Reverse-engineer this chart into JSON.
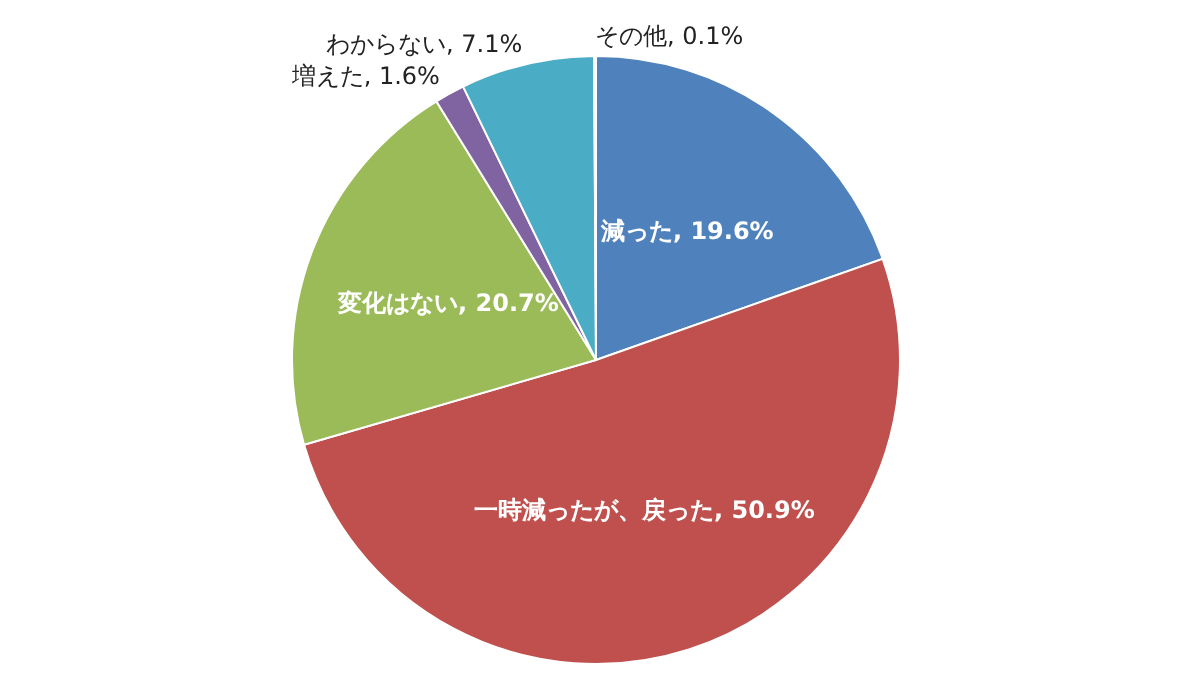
{
  "chart_data": {
    "type": "pie",
    "categories": [
      "減った",
      "一時減ったが、戻った",
      "変化はない",
      "増えた",
      "わからない",
      "その他"
    ],
    "values": [
      19.6,
      50.9,
      20.7,
      1.6,
      7.1,
      0.1
    ],
    "colors": [
      "#4f81bd",
      "#c0504d",
      "#9bbb59",
      "#8064a2",
      "#4bacc6",
      "#f79646"
    ],
    "value_labels": [
      "19.6%",
      "50.9%",
      "20.7%",
      "1.6%",
      "7.1%",
      "0.1%"
    ]
  }
}
